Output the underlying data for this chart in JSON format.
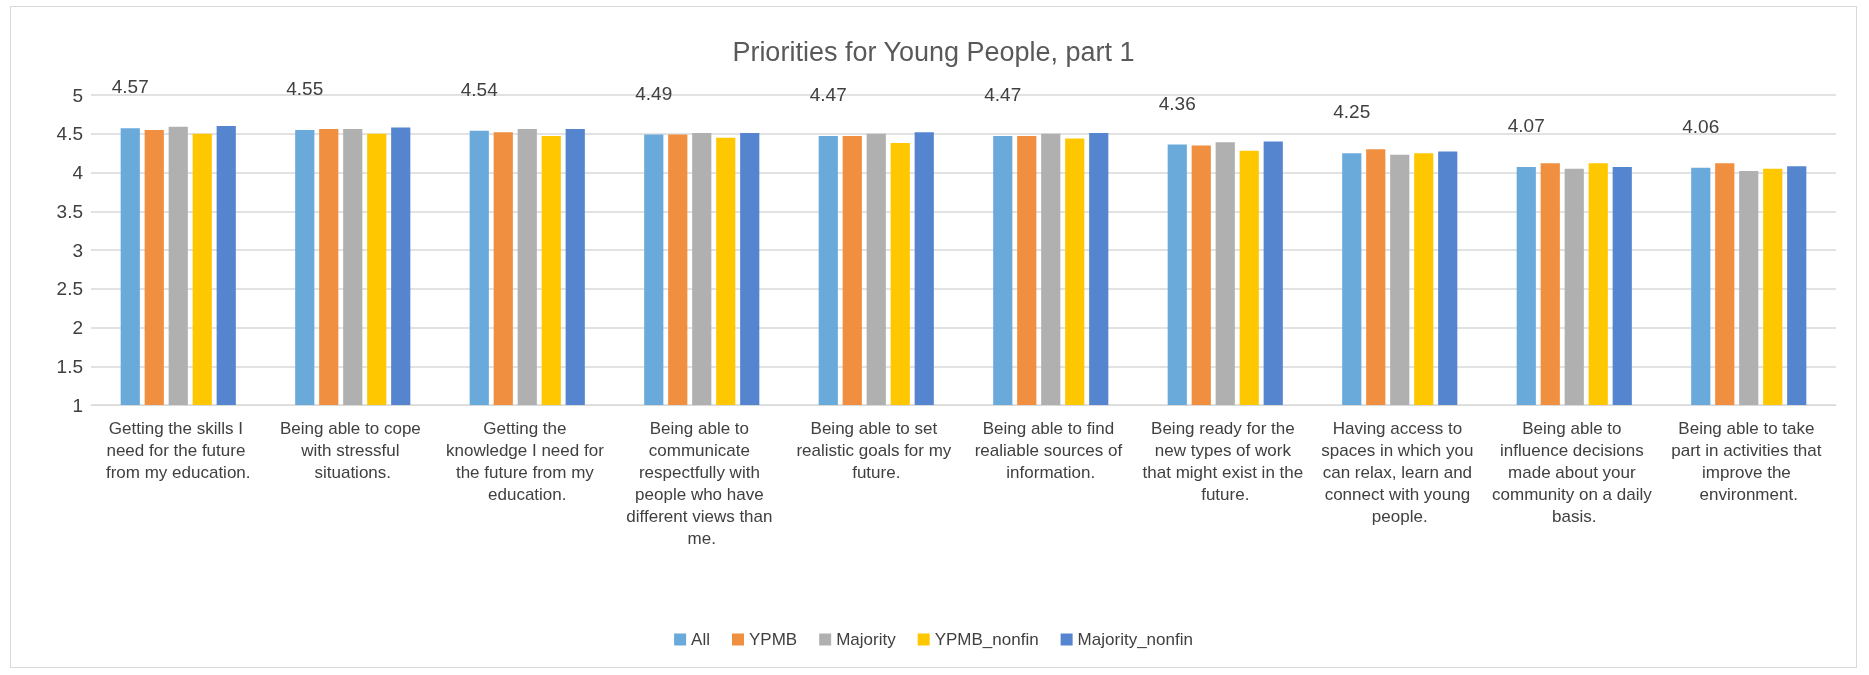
{
  "chart_data": {
    "type": "bar",
    "title": "Priorities for Young People, part 1",
    "categories": [
      "Getting the skills I need for the future from my education.",
      "Being able to cope with stressful situations.",
      "Getting the knowledge I need for the future from my education.",
      "Being able to communicate respectfully with people who have different views than me.",
      "Being able to set realistic goals for my future.",
      "Being able to find realiable sources of information.",
      "Being ready for the new types of work that might exist in the future.",
      "Having access to spaces in which you can relax, learn and connect with young people.",
      "Being able to influence decisions made about your community on a daily basis.",
      "Being able to take part in activities that improve the environment."
    ],
    "series": [
      {
        "name": "All",
        "color": "#6aaadb",
        "values": [
          4.57,
          4.55,
          4.54,
          4.49,
          4.47,
          4.47,
          4.36,
          4.25,
          4.07,
          4.06
        ],
        "value_labels": [
          "4.57",
          "4.55",
          "4.54",
          "4.49",
          "4.47",
          "4.47",
          "4.36",
          "4.25",
          "4.07",
          "4.06"
        ]
      },
      {
        "name": "YPMB",
        "color": "#f08f40",
        "values": [
          4.55,
          4.56,
          4.52,
          4.49,
          4.47,
          4.47,
          4.35,
          4.3,
          4.12,
          4.12
        ]
      },
      {
        "name": "Majority",
        "color": "#b0b0b0",
        "values": [
          4.59,
          4.56,
          4.56,
          4.51,
          4.5,
          4.5,
          4.39,
          4.23,
          4.05,
          4.02
        ]
      },
      {
        "name": "YPMB_nonfin",
        "color": "#ffc700",
        "values": [
          4.5,
          4.5,
          4.47,
          4.45,
          4.38,
          4.44,
          4.28,
          4.25,
          4.12,
          4.05
        ]
      },
      {
        "name": "Majority_nonfin",
        "color": "#5585cf",
        "values": [
          4.6,
          4.58,
          4.56,
          4.51,
          4.52,
          4.51,
          4.4,
          4.27,
          4.07,
          4.08
        ]
      }
    ],
    "ylim": [
      1,
      5
    ],
    "yticks": [
      1,
      1.5,
      2,
      2.5,
      3,
      3.5,
      4,
      4.5,
      5
    ],
    "grid": "y",
    "legend": "bottom"
  }
}
